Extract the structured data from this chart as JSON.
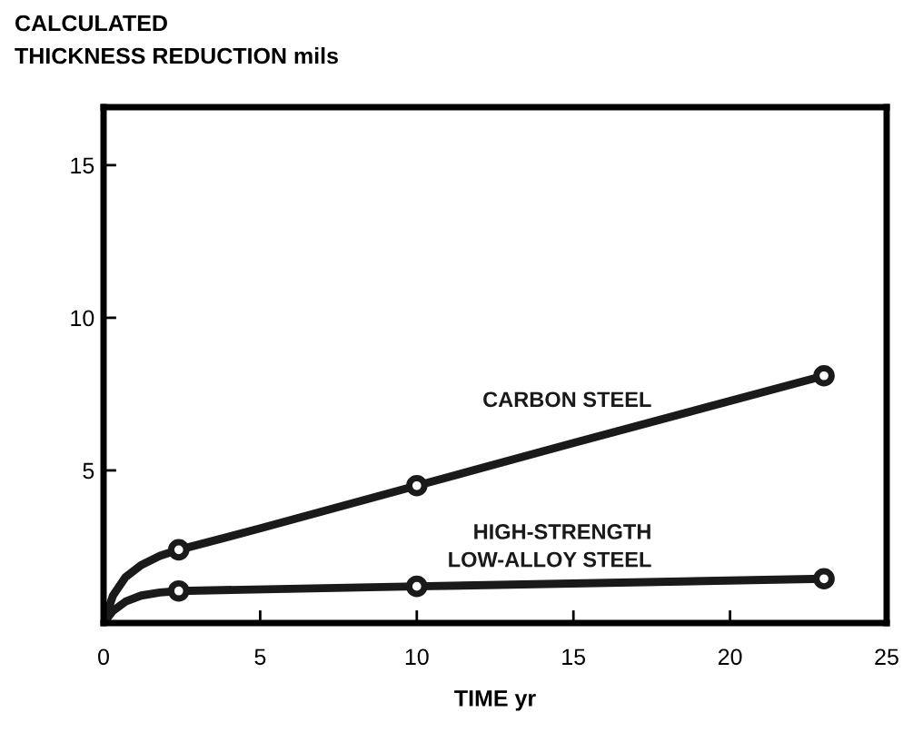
{
  "chart_data": {
    "type": "line",
    "ylabel": "CALCULATED\nTHICKNESS REDUCTION mils",
    "xlabel": "TIME yr",
    "xlim": [
      0,
      25
    ],
    "ylim": [
      0,
      16.9
    ],
    "xticks": [
      0,
      5,
      10,
      15,
      20,
      25
    ],
    "yticks": [
      5,
      10,
      15
    ],
    "grid": false,
    "legend": false,
    "series": [
      {
        "name": "CARBON STEEL",
        "color": "#1a1a1a",
        "marker": "none",
        "x": [
          0,
          0.3,
          0.7,
          1.2,
          1.8,
          2.4,
          5,
          10,
          15,
          23
        ],
        "values": [
          0,
          0.9,
          1.5,
          1.9,
          2.2,
          2.4,
          3.1,
          4.5,
          5.9,
          8.1
        ]
      },
      {
        "name": "HIGH-STRENGTH\nLOW-ALLOY STEEL",
        "color": "#1a1a1a",
        "marker": "none",
        "x": [
          0,
          0.3,
          0.7,
          1.2,
          1.8,
          2.4,
          10,
          23
        ],
        "values": [
          0,
          0.4,
          0.7,
          0.9,
          1.0,
          1.05,
          1.2,
          1.45
        ]
      },
      {
        "type": "scatter",
        "color": "#1a1a1a",
        "marker": "circle",
        "x": [
          2.4,
          10,
          23
        ],
        "values": [
          2.4,
          4.5,
          8.1
        ]
      },
      {
        "type": "scatter",
        "color": "#1a1a1a",
        "marker": "circle",
        "x": [
          2.4,
          10,
          23
        ],
        "values": [
          1.05,
          1.2,
          1.45
        ]
      }
    ]
  }
}
